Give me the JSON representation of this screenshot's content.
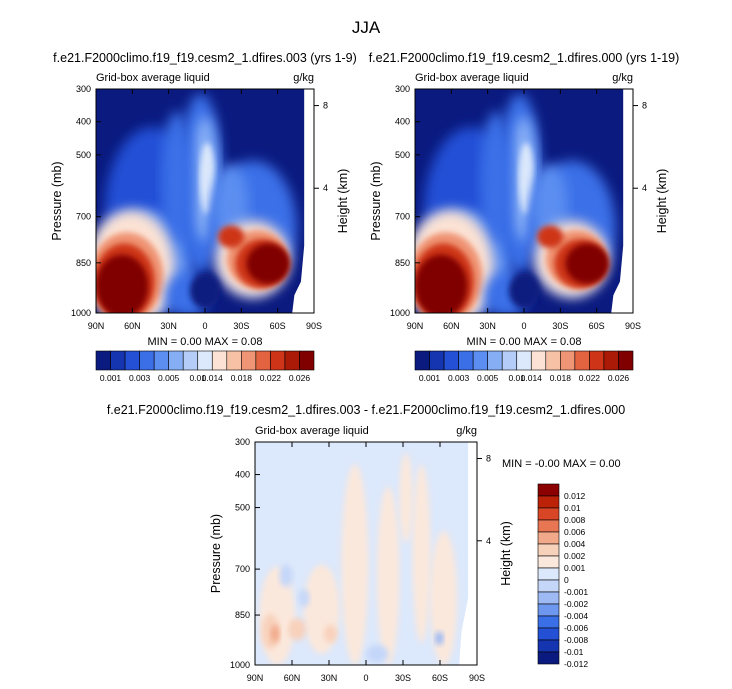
{
  "page_title": "JJA",
  "palette": {
    "abs": [
      "#0a1a7f",
      "#1434b0",
      "#2450d6",
      "#3a6fe8",
      "#5b8ef0",
      "#86aef5",
      "#b4cdf8",
      "#dce8fb",
      "#fbe2d4",
      "#f6c1a5",
      "#ef9474",
      "#e3623f",
      "#ce3418",
      "#ab1a06",
      "#800000"
    ],
    "diff": [
      "#0a1a7f",
      "#1434b0",
      "#2450d6",
      "#3a6fe8",
      "#6e97f0",
      "#9dbaf5",
      "#c5d7f9",
      "#dce8fb",
      "#fbe8dc",
      "#f8d1bb",
      "#f2a98a",
      "#e87653",
      "#d84625",
      "#bb2208",
      "#8b0000"
    ]
  },
  "chart_data": [
    {
      "type": "heatmap",
      "title": "f.e21.F2000climo.f19_f19.cesm2_1.dfires.003 (yrs 1-9)",
      "left_label": "Grid-box average liquid",
      "right_label": "g/kg",
      "ylabel": "Pressure (mb)",
      "ylabel_right": "Height (km)",
      "x_ticks": [
        "90N",
        "60N",
        "30N",
        "0",
        "30S",
        "60S",
        "90S"
      ],
      "y_ticks": [
        "300",
        "400",
        "500",
        "700",
        "850",
        "1000"
      ],
      "y_ticks_right": [
        "8",
        "4"
      ],
      "ylim": [
        1000,
        300
      ],
      "stats": "MIN =  0.00   MAX =  0.08",
      "colorbar": {
        "orientation": "horizontal",
        "labels": [
          "0.001",
          "0.003",
          "0.005",
          "0.01",
          "0.014",
          "0.018",
          "0.022",
          "0.026"
        ]
      }
    },
    {
      "type": "heatmap",
      "title": "f.e21.F2000climo.f19_f19.cesm2_1.dfires.000 (yrs 1-19)",
      "left_label": "Grid-box average liquid",
      "right_label": "g/kg",
      "ylabel": "Pressure (mb)",
      "ylabel_right": "Height (km)",
      "x_ticks": [
        "90N",
        "60N",
        "30N",
        "0",
        "30S",
        "60S",
        "90S"
      ],
      "y_ticks": [
        "300",
        "400",
        "500",
        "700",
        "850",
        "1000"
      ],
      "y_ticks_right": [
        "8",
        "4"
      ],
      "ylim": [
        1000,
        300
      ],
      "stats": "MIN =  0.00   MAX =  0.08",
      "colorbar": {
        "orientation": "horizontal",
        "labels": [
          "0.001",
          "0.003",
          "0.005",
          "0.01",
          "0.014",
          "0.018",
          "0.022",
          "0.026"
        ]
      }
    },
    {
      "type": "heatmap",
      "title": "f.e21.F2000climo.f19_f19.cesm2_1.dfires.003 - f.e21.F2000climo.f19_f19.cesm2_1.dfires.000",
      "left_label": "Grid-box average liquid",
      "right_label": "g/kg",
      "ylabel": "Pressure (mb)",
      "ylabel_right": "Height (km)",
      "x_ticks": [
        "90N",
        "60N",
        "30N",
        "0",
        "30S",
        "60S",
        "90S"
      ],
      "y_ticks": [
        "300",
        "400",
        "500",
        "700",
        "850",
        "1000"
      ],
      "y_ticks_right": [
        "8",
        "4"
      ],
      "ylim": [
        1000,
        300
      ],
      "stats": "MIN = -0.00   MAX =  0.00",
      "colorbar": {
        "orientation": "vertical",
        "labels": [
          "0.012",
          "0.01",
          "0.008",
          "0.006",
          "0.004",
          "0.002",
          "0.001",
          "0",
          "-0.001",
          "-0.002",
          "-0.004",
          "-0.006",
          "-0.008",
          "-0.01",
          "-0.012"
        ]
      }
    }
  ]
}
